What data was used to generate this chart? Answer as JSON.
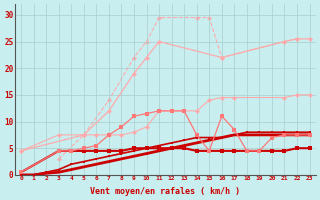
{
  "bg_color": "#c8eef0",
  "grid_color": "#aacccc",
  "light_pink": "#ffaaaa",
  "medium_pink": "#ff7777",
  "dark_red": "#cc0000",
  "xlabel": "Vent moyen/en rafales ( km/h )",
  "xlim": [
    -0.5,
    23.5
  ],
  "ylim": [
    0,
    32
  ],
  "yticks": [
    0,
    5,
    10,
    15,
    20,
    25,
    30
  ],
  "curves": {
    "c1_x": [
      0,
      1,
      2,
      3,
      4,
      5,
      6,
      7,
      8,
      9,
      10,
      11,
      12,
      13,
      14,
      15,
      16,
      17,
      18,
      19,
      20,
      21,
      22,
      23
    ],
    "c1_y": [
      0,
      0,
      0.3,
      0.5,
      1.0,
      1.5,
      2.0,
      2.5,
      3.0,
      3.5,
      4.0,
      4.5,
      5.0,
      5.5,
      6.0,
      6.5,
      7.0,
      7.5,
      7.5,
      7.5,
      7.5,
      7.5,
      7.5,
      7.5
    ],
    "c2_x": [
      0,
      1,
      2,
      3,
      4,
      5,
      6,
      7,
      8,
      9,
      10,
      11,
      12,
      13,
      14,
      15,
      16,
      17,
      18,
      19,
      20,
      21,
      22,
      23
    ],
    "c2_y": [
      0,
      0,
      0.5,
      1.0,
      2.0,
      2.5,
      3.0,
      3.5,
      4.0,
      4.5,
      5.0,
      5.5,
      6.0,
      6.5,
      7.0,
      7.0,
      7.0,
      7.5,
      8.0,
      8.0,
      8.0,
      8.0,
      8.0,
      8.0
    ],
    "c3_x": [
      0,
      3,
      4,
      5,
      6,
      7,
      8,
      9,
      10,
      11,
      12,
      13,
      14,
      15,
      16,
      17,
      18,
      19,
      20,
      21,
      22,
      23
    ],
    "c3_y": [
      0.5,
      4.5,
      4.5,
      4.5,
      4.5,
      4.5,
      4.5,
      5.0,
      5.0,
      5.0,
      5.0,
      5.0,
      4.5,
      4.5,
      4.5,
      4.5,
      4.5,
      4.5,
      4.5,
      4.5,
      5.0,
      5.0
    ],
    "c4_x": [
      0,
      3,
      4,
      5,
      6,
      7,
      8,
      9,
      10,
      11,
      12,
      13,
      14,
      15,
      16,
      17,
      18,
      19,
      20,
      21,
      22,
      23
    ],
    "c4_y": [
      0.5,
      4.5,
      4.5,
      5.0,
      5.5,
      7.5,
      9.0,
      11.0,
      11.5,
      12.0,
      12.0,
      12.0,
      7.5,
      4.5,
      11.0,
      8.5,
      4.5,
      4.5,
      7.0,
      7.5,
      7.5,
      7.5
    ],
    "c5_x": [
      0,
      5,
      7,
      9,
      10,
      11,
      16,
      21,
      22,
      23
    ],
    "c5_y": [
      4.5,
      7.5,
      12.0,
      19.0,
      22.0,
      25.0,
      22.0,
      25.0,
      25.5,
      25.5
    ],
    "c6_x": [
      0,
      3,
      5,
      6,
      7,
      8,
      9,
      10,
      11,
      14,
      15,
      16,
      17,
      21,
      22,
      23
    ],
    "c6_y": [
      4.5,
      7.5,
      7.5,
      7.5,
      7.5,
      7.5,
      8.0,
      9.0,
      12.0,
      12.0,
      14.0,
      14.5,
      14.5,
      14.5,
      15.0,
      15.0
    ],
    "c7_x": [
      3,
      5,
      7,
      9,
      10,
      11,
      14,
      15,
      16,
      21,
      22
    ],
    "c7_y": [
      3.0,
      7.5,
      14.0,
      22.0,
      25.0,
      29.5,
      29.5,
      29.5,
      22.0,
      25.0,
      25.5
    ]
  }
}
